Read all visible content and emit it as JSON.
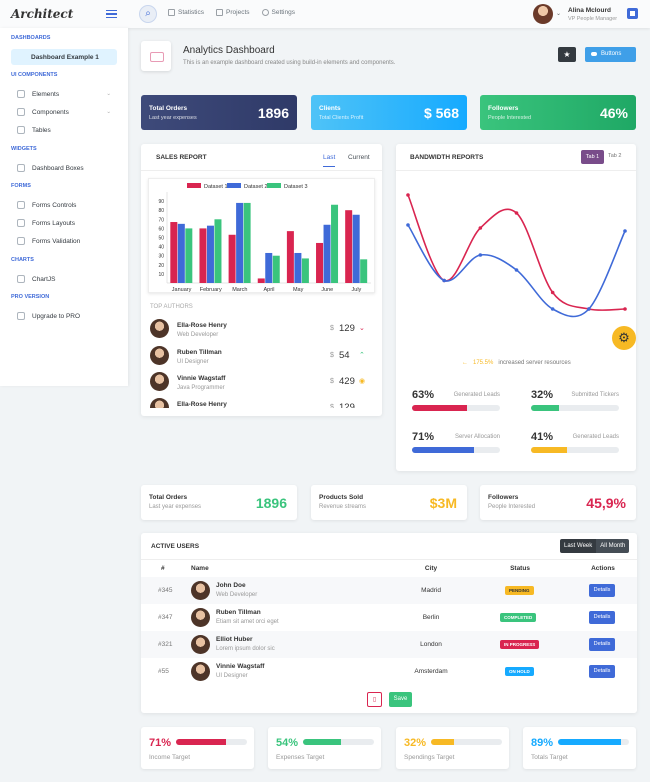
{
  "header": {
    "logo": "Architect",
    "nav": [
      {
        "label": "Statistics"
      },
      {
        "label": "Projects"
      },
      {
        "label": "Settings"
      }
    ],
    "user": {
      "name": "Alina Mclourd",
      "role": "VP People Manager"
    }
  },
  "sidebar": {
    "sections": [
      {
        "heading": "Dashboards"
      },
      {
        "heading": "UI Components"
      },
      {
        "heading": "Widgets"
      },
      {
        "heading": "Forms"
      },
      {
        "heading": "Charts"
      },
      {
        "heading": "Pro Version"
      }
    ],
    "items": [
      {
        "label": "Dashboard Example 1"
      },
      {
        "label": "Elements"
      },
      {
        "label": "Components"
      },
      {
        "label": "Tables"
      },
      {
        "label": "Dashboard Boxes"
      },
      {
        "label": "Forms Controls"
      },
      {
        "label": "Forms Layouts"
      },
      {
        "label": "Forms Validation"
      },
      {
        "label": "ChartJS"
      },
      {
        "label": "Upgrade to PRO"
      }
    ]
  },
  "page": {
    "title": "Analytics Dashboard",
    "subtitle": "This is an example dashboard created using build-in elements and components.",
    "buttons_label": "Buttons"
  },
  "stat_tiles": [
    {
      "title": "Total Orders",
      "sub": "Last year expenses",
      "value": "1896",
      "colors": [
        "#3e4a7a",
        "#2f3a68"
      ]
    },
    {
      "title": "Clients",
      "sub": "Total Clients Profit",
      "value": "$ 568",
      "colors": [
        "#4fc3f7",
        "#16aaff"
      ]
    },
    {
      "title": "Followers",
      "sub": "People Interested",
      "value": "46%",
      "colors": [
        "#3ac47d",
        "#1fa865"
      ]
    }
  ],
  "sales": {
    "title": "Sales Report",
    "tabs": [
      "Last",
      "Current"
    ],
    "top_authors_label": "TOP AUTHORS",
    "authors": [
      {
        "name": "Ella-Rose Henry",
        "role": "Web Developer",
        "currency": "$",
        "value": "129",
        "indicator": "down",
        "indicator_color": "#d92550"
      },
      {
        "name": "Ruben Tillman",
        "role": "UI Designer",
        "currency": "$",
        "value": "54",
        "indicator": "up",
        "indicator_color": "#3ac47d"
      },
      {
        "name": "Vinnie Wagstaff",
        "role": "Java Programmer",
        "currency": "$",
        "value": "429",
        "indicator": "dot",
        "indicator_color": "#f7b924"
      },
      {
        "name": "Ella-Rose Henry",
        "role": "",
        "currency": "$",
        "value": "129",
        "indicator": "",
        "indicator_color": "#999"
      }
    ]
  },
  "chart_data": [
    {
      "type": "bar",
      "categories": [
        "January",
        "February",
        "March",
        "April",
        "May",
        "June",
        "July"
      ],
      "series": [
        {
          "name": "Dataset 1",
          "color": "#d92550",
          "values": [
            67,
            60,
            53,
            5,
            57,
            44,
            80
          ]
        },
        {
          "name": "Dataset 2",
          "color": "#3f6ad8",
          "values": [
            65,
            63,
            88,
            33,
            33,
            64,
            75
          ]
        },
        {
          "name": "Dataset 3",
          "color": "#3ac47d",
          "values": [
            60,
            70,
            88,
            30,
            27,
            86,
            26
          ]
        }
      ],
      "ylim": [
        0,
        100
      ],
      "yticks": [
        10,
        20,
        30,
        40,
        50,
        60,
        70,
        80,
        90
      ],
      "legend": "top"
    },
    {
      "type": "line",
      "title": "",
      "series": [
        {
          "name": "",
          "color": "#d92550",
          "values": [
            90,
            33,
            68,
            78,
            25,
            14,
            14
          ]
        },
        {
          "name": "",
          "color": "#3f6ad8",
          "values": [
            70,
            33,
            50,
            40,
            14,
            14,
            66
          ]
        }
      ],
      "grid": false
    }
  ],
  "bandwidth": {
    "title": "Bandwidth Reports",
    "tabs": [
      "Tab 1",
      "Tab 2"
    ],
    "increase_pct": "175.5%",
    "increase_text": "increased server resources",
    "progress": [
      {
        "pct": "63%",
        "label": "Generated Leads",
        "value": 63,
        "color": "#d92550"
      },
      {
        "pct": "32%",
        "label": "Submitted Tickers",
        "value": 32,
        "color": "#3ac47d"
      },
      {
        "pct": "71%",
        "label": "Server Allocation",
        "value": 71,
        "color": "#3f6ad8"
      },
      {
        "pct": "41%",
        "label": "Generated Leads",
        "value": 41,
        "color": "#f7b924"
      }
    ]
  },
  "stats2": [
    {
      "title": "Total Orders",
      "sub": "Last year expenses",
      "value": "1896",
      "color": "#3ac47d"
    },
    {
      "title": "Products Sold",
      "sub": "Revenue streams",
      "value": "$3M",
      "color": "#f7b924"
    },
    {
      "title": "Followers",
      "sub": "People Interested",
      "value": "45,9%",
      "color": "#d92550"
    }
  ],
  "active_users": {
    "title": "Active Users",
    "toggle": [
      "Last Week",
      "All Month"
    ],
    "columns": [
      "#",
      "Name",
      "City",
      "Status",
      "Actions"
    ],
    "rows": [
      {
        "id": "#345",
        "name": "John Doe",
        "role": "Web Developer",
        "city": "Madrid",
        "status": "Pending",
        "status_color": "#f7b924",
        "status_text_color": "#333",
        "action": "Details"
      },
      {
        "id": "#347",
        "name": "Ruben Tillman",
        "role": "Etiam sit amet orci eget",
        "city": "Berlin",
        "status": "Completed",
        "status_color": "#3ac47d",
        "status_text_color": "#fff",
        "action": "Details"
      },
      {
        "id": "#321",
        "name": "Elliot Huber",
        "role": "Lorem ipsum dolor sic",
        "city": "London",
        "status": "In Progress",
        "status_color": "#d92550",
        "status_text_color": "#fff",
        "action": "Details"
      },
      {
        "id": "#55",
        "name": "Vinnie Wagstaff",
        "role": "UI Designer",
        "city": "Amsterdam",
        "status": "On Hold",
        "status_color": "#16aaff",
        "status_text_color": "#fff",
        "action": "Details"
      }
    ],
    "save_label": "Save"
  },
  "targets": [
    {
      "pct": "71%",
      "label": "Income Target",
      "value": 71,
      "color": "#d92550"
    },
    {
      "pct": "54%",
      "label": "Expenses Target",
      "value": 54,
      "color": "#3ac47d"
    },
    {
      "pct": "32%",
      "label": "Spendings Target",
      "value": 32,
      "color": "#f7b924"
    },
    {
      "pct": "89%",
      "label": "Totals Target",
      "value": 89,
      "color": "#16aaff"
    }
  ]
}
